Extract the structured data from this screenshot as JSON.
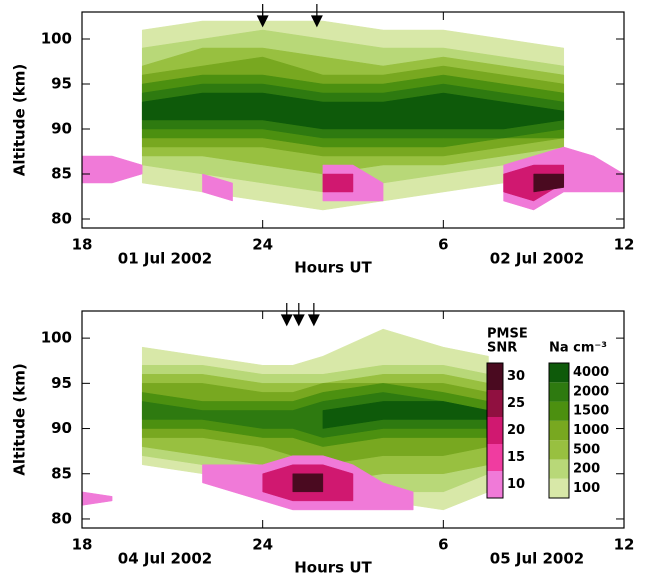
{
  "chart_data": [
    {
      "type": "contour",
      "xlabel": "Hours UT",
      "ylabel": "Altitude (km)",
      "dates": [
        "01 Jul 2002",
        "02 Jul 2002"
      ],
      "xlim": [
        18,
        36
      ],
      "xticks": [
        18,
        24,
        {
          "value": 30,
          "label": "6"
        },
        {
          "value": 36,
          "label": "12"
        }
      ],
      "ylim": [
        79,
        103
      ],
      "yticks": [
        80,
        85,
        90,
        95,
        100
      ],
      "arrows": [
        24,
        25.8
      ],
      "na_x": [
        20,
        22,
        24,
        26,
        28,
        30,
        32,
        34
      ],
      "na_bands": [
        {
          "color": "#d8e8a8",
          "lower": [
            84,
            83,
            82,
            81,
            82,
            83,
            84,
            86
          ],
          "upper": [
            101,
            102,
            102,
            102,
            101,
            101,
            100,
            99
          ]
        },
        {
          "color": "#b8d878",
          "lower": [
            86,
            85,
            84,
            83,
            84,
            85,
            86,
            87
          ],
          "upper": [
            99,
            100,
            101,
            100,
            99,
            99,
            98,
            97
          ]
        },
        {
          "color": "#98c040",
          "lower": [
            87,
            87,
            86,
            85,
            86,
            86,
            87,
            88
          ],
          "upper": [
            97,
            99,
            99,
            98,
            97,
            98,
            97,
            96
          ]
        },
        {
          "color": "#78a820",
          "lower": [
            88,
            88,
            88,
            87,
            87,
            87,
            88,
            89
          ],
          "upper": [
            96,
            97,
            98,
            96,
            96,
            97,
            96,
            95
          ]
        },
        {
          "color": "#4c9010",
          "lower": [
            89,
            89,
            89,
            88,
            88,
            88,
            89,
            89
          ],
          "upper": [
            95,
            96,
            96,
            95,
            95,
            96,
            95,
            94
          ]
        },
        {
          "color": "#2e7a10",
          "lower": [
            90,
            90,
            90,
            89,
            89,
            89,
            89,
            90
          ],
          "upper": [
            94,
            95,
            95,
            94,
            94,
            95,
            94,
            93
          ]
        },
        {
          "color": "#0e5a0a",
          "lower": [
            91,
            91,
            91,
            90,
            90,
            90,
            90,
            91
          ],
          "upper": [
            93,
            94,
            94,
            93,
            93,
            94,
            93,
            92
          ]
        }
      ],
      "pmse_x": [
        18,
        19,
        20,
        21,
        22,
        23,
        24,
        25,
        26,
        27,
        28,
        29,
        30,
        31,
        32,
        33,
        34,
        35,
        36
      ],
      "pmse_bands": [
        {
          "color": "#f07ad8",
          "lower": [
            84,
            84,
            85,
            null,
            83,
            82,
            null,
            null,
            82,
            82,
            82,
            null,
            null,
            null,
            82,
            81,
            83,
            83,
            83
          ],
          "upper": [
            87,
            87,
            86,
            null,
            85,
            84,
            null,
            null,
            86,
            86,
            84,
            null,
            null,
            null,
            86,
            87,
            88,
            87,
            85
          ]
        },
        {
          "color": "#d01870",
          "lower": [
            null,
            null,
            null,
            null,
            null,
            null,
            null,
            null,
            83,
            83,
            null,
            null,
            null,
            null,
            83,
            82,
            84,
            null,
            null
          ],
          "upper": [
            null,
            null,
            null,
            null,
            null,
            null,
            null,
            null,
            85,
            85,
            null,
            null,
            null,
            null,
            85,
            86,
            86,
            null,
            null
          ]
        },
        {
          "color": "#4a0a20",
          "lower": [
            null,
            null,
            null,
            null,
            null,
            null,
            null,
            null,
            null,
            null,
            null,
            null,
            null,
            null,
            null,
            83,
            83.5,
            null,
            null
          ],
          "upper": [
            null,
            null,
            null,
            null,
            null,
            null,
            null,
            null,
            null,
            null,
            null,
            null,
            null,
            null,
            null,
            85,
            85,
            null,
            null
          ]
        }
      ]
    },
    {
      "type": "contour",
      "xlabel": "Hours UT",
      "ylabel": "Altitude (km)",
      "dates": [
        "04 Jul 2002",
        "05 Jul 2002"
      ],
      "xlim": [
        18,
        36
      ],
      "xticks": [
        18,
        24,
        {
          "value": 30,
          "label": "6"
        },
        {
          "value": 36,
          "label": "12"
        }
      ],
      "ylim": [
        79,
        103
      ],
      "yticks": [
        80,
        85,
        90,
        95,
        100
      ],
      "arrows": [
        24.8,
        25.2,
        25.7
      ],
      "na_x": [
        20,
        22,
        24,
        25,
        26,
        28,
        30,
        31.5
      ],
      "na_bands": [
        {
          "color": "#d8e8a8",
          "lower": [
            86,
            85,
            84,
            83,
            82,
            82,
            81,
            83
          ],
          "upper": [
            99,
            98,
            97,
            97,
            98,
            101,
            99,
            98
          ]
        },
        {
          "color": "#b8d878",
          "lower": [
            87,
            86,
            85,
            84,
            83,
            83,
            83,
            85
          ],
          "upper": [
            97,
            97,
            96,
            96,
            96,
            97,
            97,
            96
          ]
        },
        {
          "color": "#98c040",
          "lower": [
            88,
            87,
            86,
            85,
            84,
            85,
            85,
            86
          ],
          "upper": [
            96,
            96,
            95,
            95,
            95,
            96,
            96,
            95
          ]
        },
        {
          "color": "#78a820",
          "lower": [
            89,
            89,
            88,
            87,
            86,
            87,
            87,
            88
          ],
          "upper": [
            95,
            95,
            94,
            94,
            95,
            95,
            95,
            94
          ]
        },
        {
          "color": "#4c9010",
          "lower": [
            90,
            90,
            89,
            89,
            88,
            89,
            89,
            89
          ],
          "upper": [
            94,
            93,
            93,
            93,
            94,
            95,
            94,
            93
          ]
        },
        {
          "color": "#2e7a10",
          "lower": [
            91,
            91,
            90,
            90,
            89,
            90,
            90,
            90
          ],
          "upper": [
            93,
            92,
            92,
            92,
            93,
            94,
            93,
            92
          ]
        },
        {
          "color": "#0e5a0a",
          "lower": [
            null,
            null,
            null,
            null,
            90,
            91,
            91,
            91
          ],
          "upper": [
            null,
            null,
            null,
            null,
            92,
            93,
            93,
            92
          ]
        }
      ],
      "pmse_x": [
        18,
        19,
        20,
        21,
        22,
        23,
        24,
        25,
        26,
        27,
        28,
        29
      ],
      "pmse_bands": [
        {
          "color": "#f07ad8",
          "lower": [
            81.5,
            82,
            null,
            null,
            84,
            83,
            82,
            81,
            81,
            81,
            81,
            81
          ],
          "upper": [
            83,
            82.5,
            null,
            null,
            86,
            86,
            86,
            87,
            87,
            86,
            84,
            83
          ]
        },
        {
          "color": "#d01870",
          "lower": [
            null,
            null,
            null,
            null,
            null,
            null,
            83,
            82,
            82,
            82,
            null,
            null
          ],
          "upper": [
            null,
            null,
            null,
            null,
            null,
            null,
            85,
            86,
            86,
            85,
            null,
            null
          ]
        },
        {
          "color": "#4a0a20",
          "lower": [
            null,
            null,
            null,
            null,
            null,
            null,
            null,
            83,
            83,
            null,
            null,
            null
          ],
          "upper": [
            null,
            null,
            null,
            null,
            null,
            null,
            null,
            85,
            85,
            null,
            null,
            null
          ]
        }
      ],
      "colorbars": [
        {
          "title": [
            "PMSE",
            "SNR"
          ],
          "ticks": [
            10,
            15,
            20,
            25,
            30
          ],
          "colors": [
            "#f07ad8",
            "#f03ca0",
            "#d01870",
            "#901040",
            "#4a0a20"
          ]
        },
        {
          "title": [
            "Na cm⁻³"
          ],
          "ticks": [
            100,
            200,
            500,
            1000,
            1500,
            2000,
            4000
          ],
          "colors": [
            "#d8e8a8",
            "#b8d878",
            "#98c040",
            "#78a820",
            "#4c9010",
            "#2e7a10",
            "#0e5a0a"
          ]
        }
      ]
    }
  ]
}
